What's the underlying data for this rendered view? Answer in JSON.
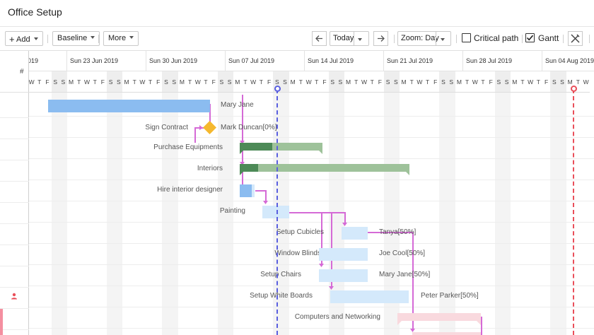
{
  "window": {
    "title": "Office Setup"
  },
  "toolbar": {
    "add_label": "Add",
    "baseline_label": "Baseline",
    "more_label": "More",
    "today_label": "Today",
    "zoom_label": "Zoom: Day",
    "critical_path_label": "Critical path",
    "gantt_label": "Gantt",
    "critical_path_checked": false,
    "gantt_checked": true
  },
  "grid": {
    "index_header": "#"
  },
  "timeline": {
    "weeks": [
      "019",
      "Sun 23 Jun 2019",
      "Sun 30 Jun 2019",
      "Sun 07 Jul 2019",
      "Sun 14 Jul 2019",
      "Sun 21 Jul 2019",
      "Sun 28 Jul 2019",
      "Sun 04 Aug 2019"
    ],
    "days": [
      "W",
      "T",
      "F",
      "S",
      "S",
      "M",
      "T",
      "W",
      "T",
      "F",
      "S",
      "S",
      "M",
      "T",
      "W",
      "T",
      "F",
      "S",
      "S",
      "M",
      "T",
      "W",
      "T",
      "F",
      "S",
      "S",
      "M",
      "T",
      "W",
      "T",
      "F",
      "S",
      "S",
      "M",
      "T",
      "W",
      "T",
      "F",
      "S",
      "S",
      "M",
      "T",
      "W",
      "T",
      "F",
      "S",
      "S",
      "M",
      "T",
      "W",
      "T",
      "F",
      "S",
      "S",
      "M",
      "T",
      "W",
      "T",
      "F",
      "S",
      "S",
      "M",
      "T",
      "W",
      "T",
      "F",
      "S",
      "S",
      "M",
      "T",
      "W"
    ],
    "first_col_glyph": "t"
  },
  "tasks": [
    {
      "name": "",
      "resource": "Mary Jane"
    },
    {
      "name": "Sign Contract",
      "resource": "Mark Duncan[0%]"
    },
    {
      "name": "Purchase Equipments",
      "resource": ""
    },
    {
      "name": "Interiors",
      "resource": ""
    },
    {
      "name": "Hire interior designer",
      "resource": ""
    },
    {
      "name": "Painting",
      "resource": ""
    },
    {
      "name": "Setup Cubicles",
      "resource": "Tanya[50%]"
    },
    {
      "name": "Window Blinds",
      "resource": "Joe Cool[50%]"
    },
    {
      "name": "Setup Chairs",
      "resource": "Mary Jane[50%]"
    },
    {
      "name": "Setup White Boards",
      "resource": "Peter Parker[50%]"
    },
    {
      "name": "Computers and Networking",
      "resource": ""
    }
  ],
  "progress": {
    "purchase_equipments": 0.39,
    "interiors": 0.11
  },
  "colors": {
    "accent_blue": "#8bbcf0",
    "summary_green": "#9ec29a",
    "progress_green": "#4d8a57",
    "milestone": "#f5b82e",
    "today_line": "#5a5fe0",
    "deadline_line": "#e94f5a",
    "link": "#d56ad6"
  },
  "icons": [
    "plus-icon",
    "chevron-down-icon",
    "arrow-left-icon",
    "arrow-right-icon",
    "tools-icon",
    "person-icon"
  ]
}
